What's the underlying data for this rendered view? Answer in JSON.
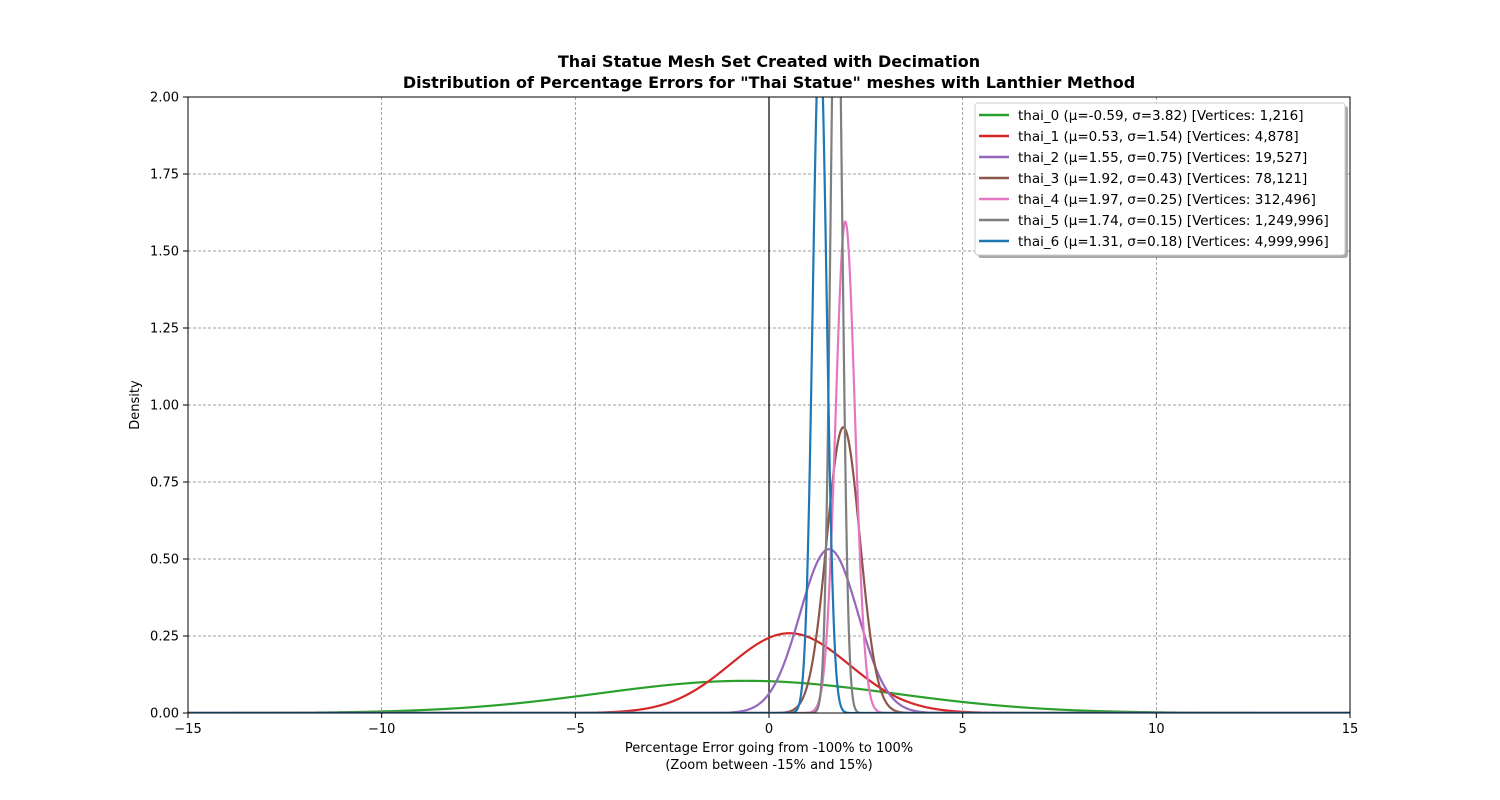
{
  "chart_data": {
    "type": "line",
    "title": "Thai Statue Mesh Set Created with Decimation",
    "subtitle": "Distribution of Percentage Errors for \"Thai Statue\" meshes with Lanthier Method",
    "xlabel": "Percentage Error going from -100% to 100%",
    "xlabel_note": "(Zoom between -15% and 15%)",
    "ylabel": "Density",
    "xlim": [
      -15,
      15
    ],
    "ylim": [
      0,
      2.0
    ],
    "x_ticks": [
      -15,
      -10,
      -5,
      0,
      5,
      10,
      15
    ],
    "x_tick_labels": [
      "−15",
      "−10",
      "−5",
      "0",
      "5",
      "10",
      "15"
    ],
    "y_ticks": [
      0,
      0.25,
      0.5,
      0.75,
      1.0,
      1.25,
      1.5,
      1.75,
      2.0
    ],
    "y_tick_labels": [
      "0.00",
      "0.25",
      "0.50",
      "0.75",
      "1.00",
      "1.25",
      "1.50",
      "1.75",
      "2.00"
    ],
    "grid": true,
    "reference_line_x": 0,
    "legend_position": "top-right",
    "series": [
      {
        "name": "thai_0 (μ=-0.59, σ=3.82) [Vertices: 1,216]",
        "mu": -0.59,
        "sigma": 3.82,
        "color": "#2ca02c"
      },
      {
        "name": "thai_1 (μ=0.53, σ=1.54) [Vertices: 4,878]",
        "mu": 0.53,
        "sigma": 1.54,
        "color": "#d62728"
      },
      {
        "name": "thai_2 (μ=1.55, σ=0.75) [Vertices: 19,527]",
        "mu": 1.55,
        "sigma": 0.75,
        "color": "#9467bd"
      },
      {
        "name": "thai_3 (μ=1.92, σ=0.43) [Vertices: 78,121]",
        "mu": 1.92,
        "sigma": 0.43,
        "color": "#8c564b"
      },
      {
        "name": "thai_4 (μ=1.97, σ=0.25) [Vertices: 312,496]",
        "mu": 1.97,
        "sigma": 0.25,
        "color": "#e377c2"
      },
      {
        "name": "thai_5 (μ=1.74, σ=0.15) [Vertices: 1,249,996]",
        "mu": 1.74,
        "sigma": 0.15,
        "color": "#7f7f7f"
      },
      {
        "name": "thai_6 (μ=1.31, σ=0.18) [Vertices: 4,999,996]",
        "mu": 1.31,
        "sigma": 0.18,
        "color": "#1f77b4"
      }
    ]
  }
}
